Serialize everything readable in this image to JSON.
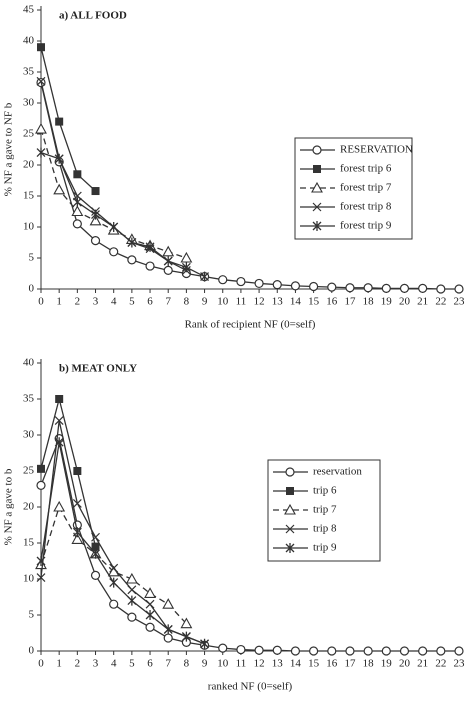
{
  "chart_data": [
    {
      "type": "line",
      "title": "a) ALL FOOD",
      "ylabel": "% NF a gave to NF b",
      "xlabel": "Rank of recipient NF (0=self)",
      "x": [
        0,
        1,
        2,
        3,
        4,
        5,
        6,
        7,
        8,
        9,
        10,
        11,
        12,
        13,
        14,
        15,
        16,
        17,
        18,
        19,
        20,
        21,
        22,
        23
      ],
      "xlim": [
        0,
        23
      ],
      "xticks": [
        0,
        1,
        2,
        3,
        4,
        5,
        6,
        7,
        8,
        9,
        10,
        11,
        12,
        13,
        14,
        15,
        16,
        17,
        18,
        19,
        20,
        21,
        22,
        23
      ],
      "ylim": [
        0,
        45
      ],
      "yticks": [
        0,
        5,
        10,
        15,
        20,
        25,
        30,
        35,
        40,
        45
      ],
      "legend": "right",
      "series": [
        {
          "name": "RESERVATION",
          "color": "#333333",
          "marker": "circle",
          "dash": false,
          "values": [
            33.3,
            20.5,
            10.5,
            7.8,
            6,
            4.7,
            3.7,
            3,
            2.5,
            2,
            1.5,
            1.2,
            0.9,
            0.7,
            0.5,
            0.4,
            0.3,
            0.2,
            0.2,
            0.1,
            0.1,
            0.1,
            0,
            0
          ]
        },
        {
          "name": "forest trip 6",
          "color": "#333333",
          "marker": "square",
          "dash": false,
          "values": [
            39,
            27,
            18.5,
            15.8,
            null,
            null,
            null,
            null,
            null,
            null,
            null,
            null,
            null,
            null,
            null,
            null,
            null,
            null,
            null,
            null,
            null,
            null,
            null,
            null
          ]
        },
        {
          "name": "forest trip 7",
          "color": "#333333",
          "marker": "triangle",
          "dash": true,
          "values": [
            25.8,
            16,
            12.5,
            11,
            9.5,
            8,
            7,
            6,
            5,
            null,
            null,
            null,
            null,
            null,
            null,
            null,
            null,
            null,
            null,
            null,
            null,
            null,
            null,
            null
          ]
        },
        {
          "name": "forest trip 8",
          "color": "#333333",
          "marker": "x",
          "dash": false,
          "values": [
            33.5,
            21,
            15,
            12.5,
            10,
            7.5,
            6.5,
            4.5,
            3,
            null,
            null,
            null,
            null,
            null,
            null,
            null,
            null,
            null,
            null,
            null,
            null,
            null,
            null,
            null
          ]
        },
        {
          "name": "forest trip 9",
          "color": "#333333",
          "marker": "star",
          "dash": false,
          "values": [
            22,
            21,
            14,
            12,
            10,
            7.5,
            6.8,
            4.5,
            3.5,
            2,
            null,
            null,
            null,
            null,
            null,
            null,
            null,
            null,
            null,
            null,
            null,
            null,
            null,
            null
          ]
        }
      ]
    },
    {
      "type": "line",
      "title": "b) MEAT ONLY",
      "ylabel": "% NF a gave to b",
      "xlabel": "ranked NF (0=self)",
      "x": [
        0,
        1,
        2,
        3,
        4,
        5,
        6,
        7,
        8,
        9,
        10,
        11,
        12,
        13,
        14,
        15,
        16,
        17,
        18,
        19,
        20,
        21,
        22,
        23
      ],
      "xlim": [
        0,
        23
      ],
      "xticks": [
        0,
        1,
        2,
        3,
        4,
        5,
        6,
        7,
        8,
        9,
        10,
        11,
        12,
        13,
        14,
        15,
        16,
        17,
        18,
        19,
        20,
        21,
        22,
        23
      ],
      "ylim": [
        0,
        40
      ],
      "yticks": [
        0,
        5,
        10,
        15,
        20,
        25,
        30,
        35,
        40
      ],
      "legend": "right",
      "series": [
        {
          "name": "reservation",
          "color": "#333333",
          "marker": "circle",
          "dash": false,
          "values": [
            23,
            29.5,
            17.5,
            10.5,
            6.5,
            4.7,
            3.3,
            1.8,
            1.2,
            0.8,
            0.4,
            0.2,
            0.1,
            0.1,
            0,
            0,
            0,
            0,
            0,
            0,
            0,
            0,
            0,
            0
          ]
        },
        {
          "name": "trip 6",
          "color": "#333333",
          "marker": "square",
          "dash": false,
          "values": [
            25.3,
            35,
            25,
            14.5,
            null,
            null,
            null,
            null,
            null,
            null,
            null,
            null,
            null,
            null,
            null,
            null,
            null,
            null,
            null,
            null,
            null,
            null,
            null,
            null
          ]
        },
        {
          "name": "trip 7",
          "color": "#333333",
          "marker": "triangle",
          "dash": true,
          "values": [
            12,
            20,
            15.5,
            13.5,
            11,
            10,
            8,
            6.5,
            3.8,
            null,
            null,
            null,
            null,
            null,
            null,
            null,
            null,
            null,
            null,
            null,
            null,
            null,
            null,
            null
          ]
        },
        {
          "name": "trip 8",
          "color": "#333333",
          "marker": "x",
          "dash": false,
          "values": [
            10.2,
            32,
            20.5,
            15.8,
            11.5,
            8.5,
            6.5,
            3,
            2,
            1,
            null,
            null,
            null,
            null,
            null,
            null,
            null,
            null,
            null,
            null,
            null,
            null,
            null,
            null
          ]
        },
        {
          "name": "trip 9",
          "color": "#333333",
          "marker": "star",
          "dash": false,
          "values": [
            12.5,
            29,
            16.5,
            13.5,
            9.5,
            7,
            5,
            3,
            2,
            1,
            null,
            null,
            null,
            null,
            null,
            null,
            null,
            null,
            null,
            null,
            null,
            null,
            null,
            null
          ]
        }
      ]
    }
  ]
}
